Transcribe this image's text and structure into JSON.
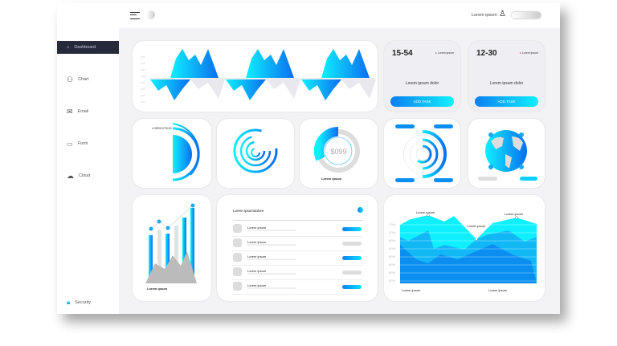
{
  "header": {
    "user_label": "Lorem ipsum",
    "icons": [
      "menu-icon",
      "user-icon",
      "toggle"
    ]
  },
  "sidebar": {
    "items": [
      {
        "label": "Dashboard",
        "icon": "home-icon",
        "active": true
      },
      {
        "label": "Chart",
        "icon": "user-group-icon"
      },
      {
        "label": "Email",
        "icon": "mail-icon"
      },
      {
        "label": "Form",
        "icon": "chat-icon"
      },
      {
        "label": "Cloud",
        "icon": "cloud-icon"
      }
    ],
    "footer": {
      "label": "Security",
      "icon": "lock-icon"
    }
  },
  "tasks": [
    {
      "range": "15-54",
      "tag": "Lorem ipsum",
      "title": "Lorem ipsum dolor",
      "button": "ADD TASK"
    },
    {
      "range": "12-30",
      "tag": "Lorem ipsum",
      "title": "Lorem ipsum dolor",
      "button": "ADD TASK"
    }
  ],
  "widgets": {
    "info_title": "LOREM IPSUM",
    "gauge_value": "$099",
    "gauge_label": "Lorem ipsum",
    "bar_label": "Lorem ipsum"
  },
  "list": {
    "title": "Lorem ipsumdolore",
    "items": [
      {
        "title": "Lorem ipsum",
        "accent": false,
        "button_on": true
      },
      {
        "title": "Lorem ipsum",
        "accent": true,
        "button_on": false
      },
      {
        "title": "Lorem ipsum",
        "accent": false,
        "button_on": true
      },
      {
        "title": "Lorem ipsum",
        "accent": true,
        "button_on": false
      },
      {
        "title": "Lorem ipsum",
        "accent": false,
        "button_on": true
      }
    ]
  },
  "area": {
    "y_labels": [
      "70%",
      "20%",
      "80%",
      "40%",
      "60%",
      "50%",
      "50%",
      "90%"
    ],
    "annotations": [
      "Lorem ipsum",
      "Lorem ipsum",
      "Lorem ipsum"
    ],
    "footer": [
      "Lorem ipsum",
      "Lorem ipsum"
    ]
  },
  "colors": {
    "accent": "#0a7ff0",
    "accent2": "#0ff0ff",
    "sidebar_active": "#262a3b",
    "tag_dot": "#e8336b"
  }
}
